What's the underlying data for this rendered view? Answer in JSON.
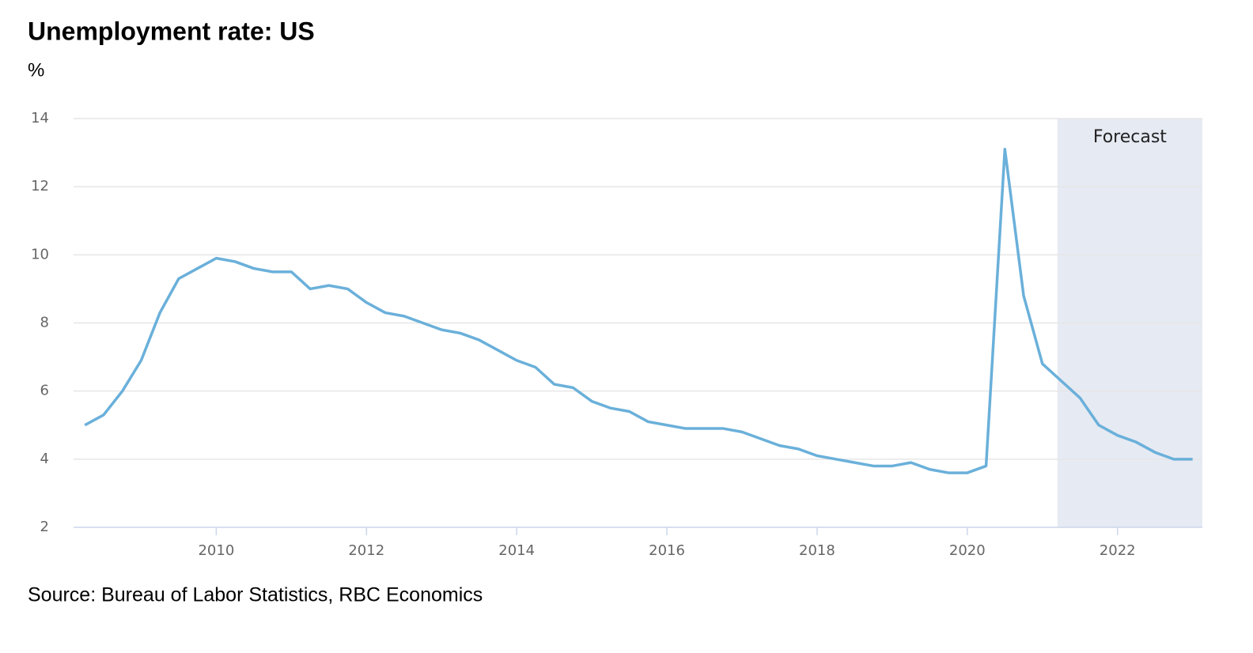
{
  "chart_data": {
    "type": "line",
    "title": "Unemployment rate: US",
    "y_label": "%",
    "source": "Source: Bureau of Labor Statistics, RBC Economics",
    "annotation": "Forecast",
    "forecast_start": 2021.2,
    "x": [
      2008.25,
      2008.5,
      2008.75,
      2009,
      2009.25,
      2009.5,
      2009.75,
      2010,
      2010.25,
      2010.5,
      2010.75,
      2011,
      2011.25,
      2011.5,
      2011.75,
      2012,
      2012.25,
      2012.5,
      2012.75,
      2013,
      2013.25,
      2013.5,
      2013.75,
      2014,
      2014.25,
      2014.5,
      2014.75,
      2015,
      2015.25,
      2015.5,
      2015.75,
      2016,
      2016.25,
      2016.5,
      2016.75,
      2017,
      2017.25,
      2017.5,
      2017.75,
      2018,
      2018.25,
      2018.5,
      2018.75,
      2019,
      2019.25,
      2019.5,
      2019.75,
      2020,
      2020.25,
      2020.5,
      2020.75,
      2021,
      2021.25,
      2021.5,
      2021.75,
      2022,
      2022.25,
      2022.5,
      2022.75,
      2023
    ],
    "series": [
      {
        "name": "Unemployment rate",
        "color": "#6ab0da",
        "values": [
          5.0,
          5.3,
          6.0,
          6.9,
          8.3,
          9.3,
          9.6,
          9.9,
          9.8,
          9.6,
          9.5,
          9.5,
          9.0,
          9.1,
          9.0,
          8.6,
          8.3,
          8.2,
          8.0,
          7.8,
          7.7,
          7.5,
          7.2,
          6.9,
          6.7,
          6.2,
          6.1,
          5.7,
          5.5,
          5.4,
          5.1,
          5.0,
          4.9,
          4.9,
          4.9,
          4.8,
          4.6,
          4.4,
          4.3,
          4.1,
          4.0,
          3.9,
          3.8,
          3.8,
          3.9,
          3.7,
          3.6,
          3.6,
          3.8,
          13.1,
          8.8,
          6.8,
          6.3,
          5.8,
          5.0,
          4.7,
          4.5,
          4.2,
          4.0,
          4.0
        ]
      }
    ],
    "xlim": [
      2008.1,
      2023.13
    ],
    "ylim": [
      2,
      14
    ],
    "xticks": [
      2010,
      2012,
      2014,
      2016,
      2018,
      2020,
      2022
    ],
    "yticks": [
      2,
      4,
      6,
      8,
      10,
      12,
      14
    ],
    "grid": true
  }
}
